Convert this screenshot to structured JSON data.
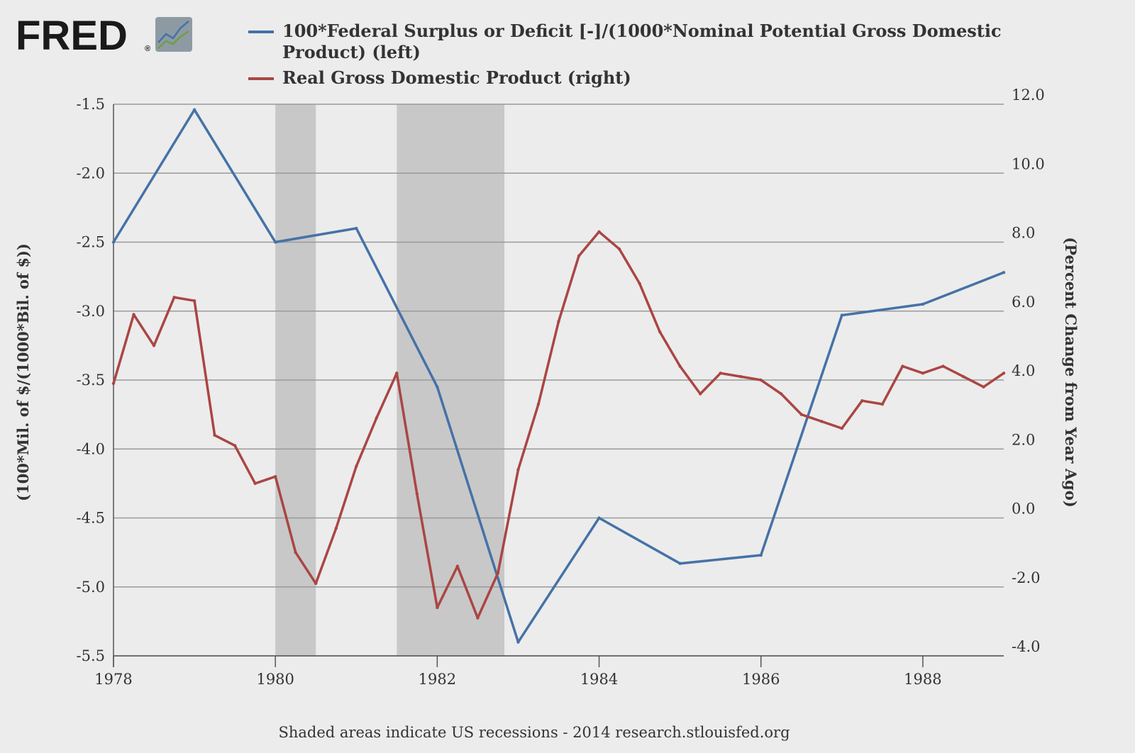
{
  "logo": {
    "text": "FRED",
    "registered": "®",
    "icon": "line-chart-icon"
  },
  "chart_data": {
    "type": "line",
    "legend_position": "top",
    "grid": true,
    "series": [
      {
        "name_lines": [
          "100*Federal Surplus or Deficit [-]/(1000*Nominal Potential Gross Domestic",
          "Product) (left)"
        ],
        "axis": "left",
        "color": "#4572a7",
        "points": [
          [
            1978.0,
            -2.5
          ],
          [
            1979.0,
            -1.54
          ],
          [
            1980.0,
            -2.5
          ],
          [
            1981.0,
            -2.4
          ],
          [
            1982.0,
            -3.55
          ],
          [
            1983.0,
            -5.4
          ],
          [
            1984.0,
            -4.5
          ],
          [
            1985.0,
            -4.83
          ],
          [
            1986.0,
            -4.77
          ],
          [
            1987.0,
            -3.03
          ],
          [
            1988.0,
            -2.95
          ],
          [
            1989.0,
            -2.72
          ]
        ]
      },
      {
        "name_lines": [
          "Real Gross Domestic Product (right)"
        ],
        "axis": "right",
        "color": "#aa4643",
        "points": [
          [
            1978.0,
            3.9
          ],
          [
            1978.25,
            5.9
          ],
          [
            1978.5,
            5.0
          ],
          [
            1978.75,
            6.4
          ],
          [
            1979.0,
            6.3
          ],
          [
            1979.25,
            2.4
          ],
          [
            1979.5,
            2.1
          ],
          [
            1979.75,
            1.0
          ],
          [
            1980.0,
            1.2
          ],
          [
            1980.25,
            -1.0
          ],
          [
            1980.5,
            -1.9
          ],
          [
            1980.75,
            -0.3
          ],
          [
            1981.0,
            1.5
          ],
          [
            1981.25,
            2.9
          ],
          [
            1981.5,
            4.2
          ],
          [
            1981.75,
            0.7
          ],
          [
            1982.0,
            -2.6
          ],
          [
            1982.25,
            -1.4
          ],
          [
            1982.5,
            -2.9
          ],
          [
            1982.75,
            -1.6
          ],
          [
            1983.0,
            1.4
          ],
          [
            1983.25,
            3.3
          ],
          [
            1983.5,
            5.7
          ],
          [
            1983.75,
            7.6
          ],
          [
            1984.0,
            8.3
          ],
          [
            1984.25,
            7.8
          ],
          [
            1984.5,
            6.8
          ],
          [
            1984.75,
            5.4
          ],
          [
            1985.0,
            4.4
          ],
          [
            1985.25,
            3.6
          ],
          [
            1985.5,
            4.2
          ],
          [
            1985.75,
            4.1
          ],
          [
            1986.0,
            4.0
          ],
          [
            1986.25,
            3.6
          ],
          [
            1986.5,
            3.0
          ],
          [
            1986.75,
            2.8
          ],
          [
            1987.0,
            2.6
          ],
          [
            1987.25,
            3.4
          ],
          [
            1987.5,
            3.3
          ],
          [
            1987.75,
            4.4
          ],
          [
            1988.0,
            4.2
          ],
          [
            1988.25,
            4.4
          ],
          [
            1988.5,
            4.1
          ],
          [
            1988.75,
            3.8
          ],
          [
            1989.0,
            4.2
          ]
        ]
      }
    ],
    "x_axis": {
      "range": [
        1978,
        1989
      ],
      "ticks": [
        1978,
        1980,
        1982,
        1984,
        1986,
        1988
      ]
    },
    "y_left": {
      "title": "(100*Mil. of $/(1000*Bil. of $))",
      "range": [
        -5.5,
        -1.5
      ],
      "ticks": [
        -1.5,
        -2.0,
        -2.5,
        -3.0,
        -3.5,
        -4.0,
        -4.5,
        -5.0,
        -5.5
      ],
      "tick_labels": [
        "-1.5",
        "-2.0",
        "-2.5",
        "-3.0",
        "-3.5",
        "-4.0",
        "-4.5",
        "-5.0",
        "-5.5"
      ]
    },
    "y_right": {
      "title": "(Percent Change from Year Ago)",
      "range": [
        -4.0,
        12.0
      ],
      "ticks": [
        12.0,
        10.0,
        8.0,
        6.0,
        4.0,
        2.0,
        0.0,
        -2.0,
        -4.0
      ],
      "tick_labels": [
        "12.0",
        "10.0",
        "8.0",
        "6.0",
        "4.0",
        "2.0",
        "0.0",
        "-2.0",
        "-4.0"
      ]
    },
    "recessions": [
      [
        1980.0,
        1980.5
      ],
      [
        1981.5,
        1982.83
      ]
    ],
    "recession_color": "#c8c8c8",
    "footer": "Shaded areas indicate US recessions - 2014 research.stlouisfed.org"
  }
}
